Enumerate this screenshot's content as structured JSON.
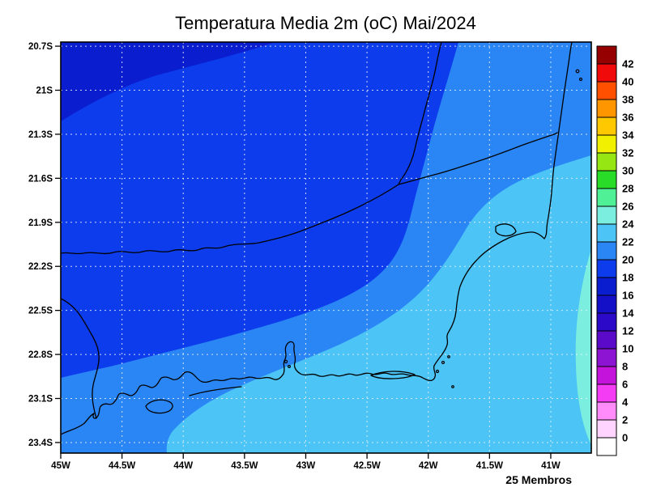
{
  "chart_data": {
    "type": "heatmap",
    "title": "Temperatura Media 2m (oC) Mai/2024",
    "variable": "Temperatura Media 2m",
    "units": "oC",
    "period": "Mai/2024",
    "ensemble_members_note": "25 Membros",
    "x_axis": {
      "label_type": "longitude",
      "tick_labels": [
        "45W",
        "44.5W",
        "44W",
        "43.5W",
        "43W",
        "42.5W",
        "42W",
        "41.5W",
        "41W"
      ],
      "tick_values_deg_w": [
        45,
        44.5,
        44,
        43.5,
        43,
        42.5,
        42,
        41.5,
        41
      ],
      "range_deg_w": [
        45,
        40.67
      ]
    },
    "y_axis": {
      "label_type": "latitude",
      "tick_labels": [
        "20.7S",
        "21S",
        "21.3S",
        "21.6S",
        "21.9S",
        "22.2S",
        "22.5S",
        "22.8S",
        "23.1S",
        "23.4S"
      ],
      "tick_values_deg_s": [
        20.7,
        21,
        21.3,
        21.6,
        21.9,
        22.2,
        22.5,
        22.8,
        23.1,
        23.4
      ],
      "range_deg_s": [
        20.67,
        23.47
      ]
    },
    "colorbar": {
      "units": "oC",
      "tick_labels": [
        "42",
        "40",
        "38",
        "36",
        "34",
        "32",
        "30",
        "28",
        "26",
        "24",
        "22",
        "20",
        "18",
        "16",
        "14",
        "12",
        "10",
        "8",
        "6",
        "4",
        "2",
        "0"
      ],
      "colors_bottom_to_top": [
        "#ffffff",
        "#ffd4ff",
        "#ff8cfa",
        "#f53cf5",
        "#c414dc",
        "#8c14d2",
        "#5a0ac8",
        "#2c08c8",
        "#1410c8",
        "#0a1ed0",
        "#0d3cec",
        "#2b86f5",
        "#4cc4f5",
        "#7ceee0",
        "#50f096",
        "#28dc28",
        "#96e614",
        "#f0f000",
        "#ffc800",
        "#ff9600",
        "#ff5000",
        "#f00a0a",
        "#960000"
      ]
    },
    "field_bands": [
      {
        "area": "northwest-inland",
        "temp_range_c": [
          18,
          20
        ],
        "color_index": 10
      },
      {
        "area": "far-northwest-corner",
        "temp_range_c": [
          16,
          18
        ],
        "color_index": 9
      },
      {
        "area": "central-diagonal",
        "temp_range_c": [
          20,
          22
        ],
        "color_index": 11
      },
      {
        "area": "southeast-coastal",
        "temp_range_c": [
          22,
          24
        ],
        "color_index": 12
      },
      {
        "area": "far-east-ocean-edge",
        "temp_range_c": [
          24,
          26
        ],
        "color_index": 13
      }
    ],
    "grid": "dotted lat-lon grid every 0.5 deg lon / 0.3 deg lat",
    "legend_position": "right-colorbar"
  }
}
